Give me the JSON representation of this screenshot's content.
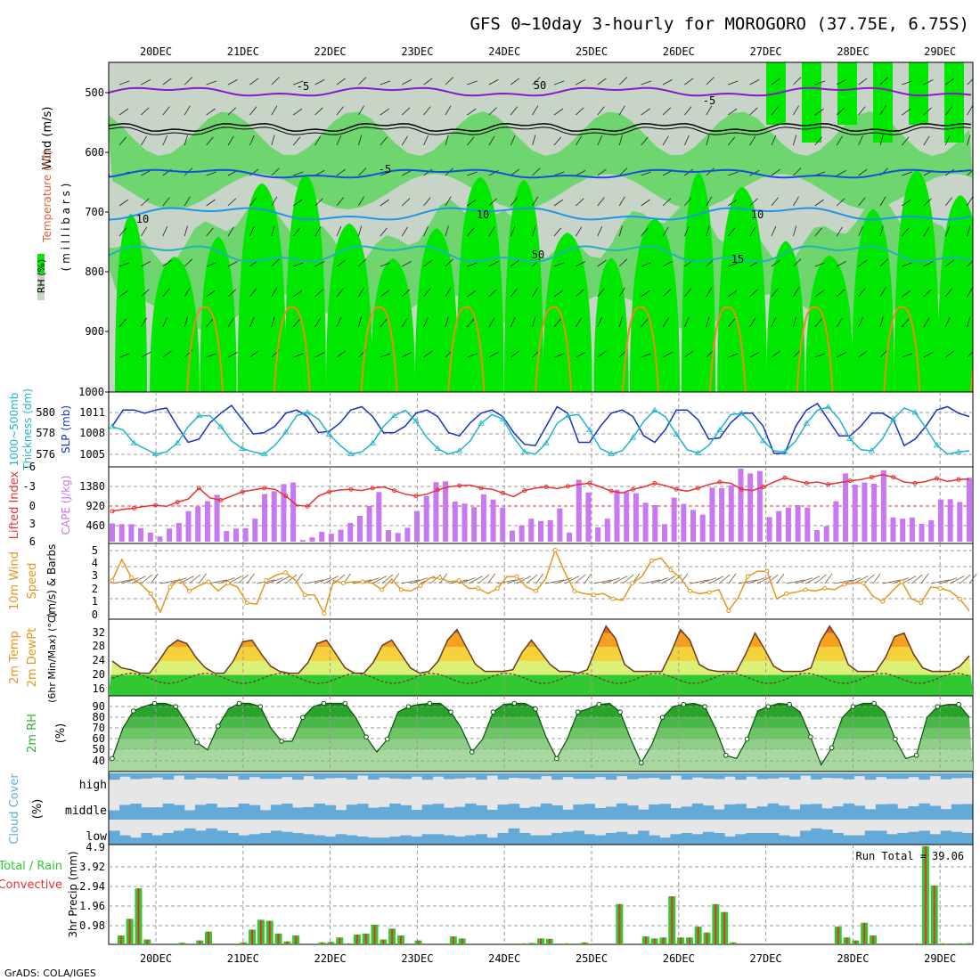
{
  "title": "GFS 0~10day 3-hourly for MOROGORO (37.75E, 6.75S)",
  "credit": "GrADS: COLA/IGES",
  "x_axis": {
    "dates": [
      "20DEC",
      "21DEC",
      "22DEC",
      "23DEC",
      "24DEC",
      "25DEC",
      "26DEC",
      "27DEC",
      "28DEC",
      "29DEC"
    ]
  },
  "colors": {
    "rh_light": "#c8d4c8",
    "rh_mid": "#6fd66f",
    "rh_bright": "#00e800",
    "wind_purple": "#8a19c8",
    "t_blue": "#1450dc",
    "t_sky": "#1e96e6",
    "t_teal": "#1eb4b4",
    "t_orange": "#e68c1e",
    "slp": "#1432c8",
    "thickness": "#1eb4c8",
    "lifted": "#e63232",
    "cape": "#c878f0",
    "wind10m": "#e6961e",
    "cloud": "#64aad8",
    "precip_total": "#32c832",
    "precip_conv": "#e63232"
  },
  "panels": {
    "upper_air": {
      "ylabel_wind": "Wind (m/s)",
      "ylabel_temp": "Temperature (°C)",
      "ylabel_rh": "RH (%)",
      "ylabel_units": "( m i l l i b a r s )",
      "yticks": [
        "500",
        "600",
        "700",
        "800",
        "900",
        "1000"
      ],
      "contour_labels": [
        "-5",
        "-5",
        "-5",
        "10",
        "10",
        "10",
        "15",
        "50",
        "50"
      ]
    },
    "slp": {
      "ylabel_left": "1000~500mb",
      "ylabel_left2": "Thickness (dm)",
      "ylabel_right": "SLP (mb)",
      "yticks_left": [
        "580",
        "578",
        "576"
      ],
      "yticks_right": [
        "1011",
        "1008",
        "1005"
      ]
    },
    "cape": {
      "ylabel_left": "Lifted Index",
      "ylabel_right": "CAPE (J/kg)",
      "yticks_left": [
        "-6",
        "-3",
        "0",
        "3",
        "6"
      ],
      "yticks_right": [
        "1380",
        "920",
        "460"
      ]
    },
    "wind": {
      "ylabel1": "10m Wind",
      "ylabel2": "Speed",
      "ylabel3": "(m/s) & Barbs",
      "yticks": [
        "5",
        "4",
        "3",
        "2",
        "1",
        "0"
      ]
    },
    "temp": {
      "ylabel1": "2m Temp",
      "ylabel2": "2m DewPt",
      "ylabel3": "(6hr Min/Max) (°C)",
      "yticks": [
        "32",
        "28",
        "24",
        "20",
        "16"
      ]
    },
    "rh2m": {
      "ylabel1": "2m RH",
      "ylabel2": "(%)",
      "yticks": [
        "90",
        "80",
        "70",
        "60",
        "50",
        "40"
      ]
    },
    "cloud": {
      "ylabel1": "Cloud Cover",
      "ylabel2": "(%)",
      "layers": [
        "high",
        "middle",
        "low"
      ]
    },
    "precip": {
      "ylabel1": "Total / Rain",
      "ylabel2": "Convective",
      "ylabel3": "3hr Precip (mm)",
      "yticks": [
        "4.9",
        "3.92",
        "2.94",
        "1.96",
        "0.98"
      ],
      "run_total_label": "Run Total =",
      "run_total": "39.06"
    }
  },
  "chart_data": {
    "type": "line",
    "title": "GFS 0~10day 3-hourly for MOROGORO (37.75E, 6.75S)",
    "time_step_hours": 3,
    "x_first": "19DEC 18Z",
    "x_labels": [
      "20DEC",
      "21DEC",
      "22DEC",
      "23DEC",
      "24DEC",
      "25DEC",
      "26DEC",
      "27DEC",
      "28DEC",
      "29DEC"
    ],
    "series": [
      {
        "name": "SLP (mb)",
        "ylim": [
          1003,
          1014
        ],
        "values": [
          1009,
          1011.5,
          1011.5,
          1011,
          1011.5,
          1011.8,
          1009,
          1006.5,
          1007,
          1009.5,
          1011,
          1012.2,
          1010,
          1007.8,
          1008,
          1009,
          1011,
          1011.5,
          1010.5,
          1008,
          1008.2,
          1009.5,
          1011.5,
          1012,
          1010.5,
          1008,
          1008,
          1009,
          1011,
          1011.5,
          1010.5,
          1008,
          1007.5,
          1009.5,
          1011,
          1011.5,
          1010.5,
          1008,
          1006.2,
          1006,
          1009,
          1012,
          1011,
          1006.5,
          1006.5,
          1009,
          1011,
          1011.5,
          1010.5,
          1007.5,
          1006.5,
          1008.5,
          1011.5,
          1011.5,
          1010,
          1007,
          1007.2,
          1009.5,
          1011,
          1011,
          1009,
          1004.8,
          1004.8,
          1009,
          1011.5,
          1012.5,
          1010,
          1007.5,
          1007.5,
          1009,
          1011,
          1011,
          1010,
          1006,
          1007,
          1009,
          1011.5,
          1012,
          1011,
          1010.5
        ]
      },
      {
        "name": "1000~500mb Thickness (dm)",
        "ylim": [
          575,
          581.5
        ],
        "values": [
          578.5,
          578.2,
          577,
          576.5,
          576,
          576.2,
          577,
          578.5,
          579.5,
          579.5,
          578.5,
          577.2,
          576.5,
          576.2,
          576,
          576.8,
          578,
          579.5,
          579.8,
          579.2,
          577.8,
          576.8,
          576,
          576.2,
          577,
          578.5,
          579.5,
          580,
          579,
          577.5,
          576.5,
          576,
          576.3,
          577.2,
          578.8,
          579.6,
          579.2,
          577.5,
          576.2,
          576,
          577,
          578.8,
          579.5,
          579.6,
          578.2,
          576.5,
          576,
          576.3,
          577.5,
          579,
          580,
          579.4,
          577.8,
          576.4,
          576.1,
          576.8,
          578.2,
          579.6,
          579.7,
          578.8,
          577.2,
          576.3,
          576.2,
          577.2,
          578.8,
          580,
          580.3,
          579.2,
          577.4,
          576.4,
          576.3,
          577.4,
          579.2,
          580.2,
          579.8,
          578.4,
          576.8,
          576,
          576.2,
          576.3
        ]
      },
      {
        "name": "Lifted Index",
        "ylim": [
          6,
          -6
        ],
        "values": [
          1,
          0.7,
          0.5,
          0.2,
          0,
          0.2,
          -0.5,
          -1,
          -2.8,
          -1.2,
          -0.8,
          -1.5,
          -2.2,
          -2.5,
          -2.8,
          -2.6,
          -1.5,
          0,
          0.2,
          -1.5,
          -2.2,
          -2.5,
          -2.6,
          -2.4,
          -2.8,
          -3,
          -2.4,
          -1.8,
          -1.5,
          -1.8,
          -2.5,
          -3,
          -3.2,
          -3.3,
          -2.8,
          -2.6,
          -2,
          -1.4,
          -2.4,
          -2.8,
          -3,
          -2.7,
          -3.1,
          -3.4,
          -3.6,
          -3,
          -2.3,
          -2,
          -2.6,
          -3,
          -3.6,
          -3.2,
          -2.6,
          -2.3,
          -2.8,
          -3.4,
          -3.8,
          -3.6,
          -2.6,
          -2.4,
          -3,
          -3.8,
          -4.5,
          -4,
          -3.6,
          -3.8,
          -3.4,
          -3.7,
          -4,
          -4.2,
          -4.6,
          -5,
          -4.6,
          -3.8,
          -3.6,
          -3.9,
          -4.4,
          -3.9,
          -4.2,
          -4.3
        ]
      },
      {
        "name": "CAPE (J/kg)",
        "ylim": [
          0,
          1840
        ],
        "values": [
          460,
          440,
          440,
          340,
          230,
          130,
          330,
          470,
          770,
          880,
          1020,
          1180,
          270,
          330,
          340,
          580,
          1200,
          1270,
          1450,
          1490,
          40,
          110,
          250,
          200,
          300,
          470,
          650,
          900,
          1250,
          290,
          220,
          350,
          770,
          1150,
          1500,
          1520,
          1010,
          960,
          870,
          1190,
          1060,
          860,
          280,
          410,
          580,
          520,
          540,
          840,
          230,
          1560,
          1240,
          360,
          580,
          1310,
          1250,
          1220,
          980,
          920,
          440,
          1110,
          950,
          800,
          680,
          1360,
          1350,
          1420,
          1840,
          1720,
          1780,
          620,
          770,
          860,
          920,
          860,
          290,
          390,
          1020,
          1720,
          1440,
          1490,
          1460,
          1800,
          610,
          580,
          610,
          450,
          540,
          1060,
          1070,
          1000,
          1610
        ]
      },
      {
        "name": "10m Wind Speed (m/s)",
        "ylim": [
          0,
          5
        ],
        "values": [
          2.6,
          4.2,
          2.8,
          2.3,
          1.6,
          0.2,
          2.1,
          2.7,
          1.8,
          2.2,
          2.5,
          1.8,
          2.4,
          2.1,
          0.9,
          0.8,
          2.6,
          3.0,
          3.2,
          2.6,
          1.5,
          1.5,
          0.1,
          2.6,
          2.4,
          2.5,
          2.5,
          2.4,
          1.9,
          2.7,
          1.9,
          1.8,
          2.2,
          2.8,
          2.8,
          2.5,
          2.6,
          2.0,
          2.0,
          1.6,
          2.0,
          2.9,
          2.9,
          2.1,
          1.8,
          2.7,
          4.9,
          3.2,
          1.8,
          1.6,
          1.5,
          1.6,
          1.2,
          1.1,
          2.4,
          2.9,
          4.1,
          4.3,
          3.4,
          2.8,
          1.8,
          1.6,
          1.7,
          1.9,
          0.3,
          1.3,
          2.9,
          3.3,
          3.3,
          1.2,
          1.6,
          1.7,
          1.9,
          1.8,
          2.0,
          1.9,
          2.3,
          2.4,
          2.4,
          1.4,
          1.0,
          1.8,
          2.5,
          1.2,
          0.9,
          2.1,
          2.0,
          1.8,
          1.2,
          0.3
        ]
      },
      {
        "name": "2m Temp (°C)",
        "ylim": [
          14,
          36
        ],
        "values": [
          24,
          22,
          21.5,
          20.5,
          20.5,
          24,
          28,
          30,
          29,
          25,
          22,
          20.5,
          20.5,
          24,
          29.5,
          30,
          26,
          22.5,
          21,
          20.5,
          20.5,
          23.5,
          29,
          30,
          26,
          22,
          20.5,
          20.5,
          23.5,
          28.5,
          30,
          26,
          22,
          20.5,
          21,
          24,
          30,
          33,
          28,
          23,
          21,
          21,
          21,
          21.5,
          26.5,
          30,
          26.5,
          23,
          21,
          21,
          20.5,
          21.5,
          28,
          34,
          30.5,
          23,
          21,
          21,
          21,
          21,
          26.5,
          33,
          30,
          23,
          21.5,
          21,
          21,
          21,
          26,
          32,
          27.5,
          22.5,
          21,
          21,
          21,
          22,
          29.5,
          34,
          30,
          23,
          21,
          21,
          21,
          25,
          31,
          32,
          26,
          22,
          21,
          21,
          21,
          22.5,
          25.5
        ]
      },
      {
        "name": "2m RH (%)",
        "ylim": [
          30,
          100
        ],
        "values": [
          42,
          70,
          86,
          90,
          93,
          93,
          90,
          75,
          57,
          50,
          72,
          88,
          93,
          93,
          90,
          70,
          58,
          58,
          80,
          90,
          93,
          93,
          93,
          80,
          62,
          48,
          60,
          85,
          90,
          92,
          93,
          93,
          85,
          70,
          48,
          60,
          85,
          92,
          93,
          93,
          88,
          62,
          42,
          60,
          85,
          88,
          92,
          93,
          85,
          60,
          38,
          55,
          80,
          90,
          92,
          93,
          90,
          70,
          45,
          42,
          60,
          86,
          90,
          93,
          92,
          85,
          62,
          36,
          52,
          80,
          90,
          93,
          93,
          85,
          60,
          42,
          45,
          80,
          90,
          92,
          92,
          80
        ]
      },
      {
        "name": "3hr Precip Total (mm)",
        "ylim": [
          0,
          4.9
        ],
        "values": [
          0,
          0.45,
          1.3,
          2.85,
          0.25,
          0,
          0,
          0,
          0.08,
          0,
          0.2,
          0.65,
          0,
          0,
          0,
          0.1,
          0.75,
          1.25,
          1.2,
          0.55,
          0.15,
          0.45,
          0,
          0,
          0.1,
          0.12,
          0.35,
          0.05,
          0.5,
          0.55,
          1.0,
          0.25,
          0.8,
          0.45,
          0,
          0.2,
          0,
          0,
          0,
          0.4,
          0.3,
          0,
          0,
          0,
          0,
          0,
          0,
          0.05,
          0.07,
          0.3,
          0.28,
          0,
          0.05,
          0,
          0.1,
          0,
          0,
          0,
          2.05,
          0,
          0,
          0.4,
          0.3,
          0.35,
          2.45,
          0.35,
          0.35,
          0.9,
          0.6,
          2.05,
          1.65,
          0.1,
          0,
          0,
          0,
          0,
          0,
          0,
          0,
          0,
          0,
          0,
          0,
          0.9,
          0.35,
          0.2,
          1.1,
          0.45,
          0,
          0,
          0,
          0,
          0.05,
          5.0,
          3.0,
          0.05,
          0,
          0.05,
          0.06
        ]
      },
      {
        "name": "Cloud Cover low (%)",
        "ylim": [
          0,
          100
        ],
        "values": [
          60,
          40,
          30,
          50,
          40,
          50,
          60,
          70,
          60,
          70,
          60,
          50,
          40,
          45,
          50,
          60,
          55,
          50,
          45,
          40,
          35,
          45,
          40,
          35,
          30,
          30,
          35,
          40,
          35,
          45,
          45,
          40,
          35,
          40,
          45,
          30,
          50,
          70,
          50,
          40,
          40,
          50,
          55,
          60,
          45,
          40,
          50,
          55,
          45,
          60,
          40,
          30,
          45,
          50,
          45,
          55,
          50,
          35,
          45,
          50,
          50,
          50,
          40,
          35,
          60,
          70,
          65,
          50,
          40,
          40,
          60,
          60,
          45,
          50,
          55,
          60,
          45,
          60,
          55,
          50
        ]
      }
    ]
  }
}
